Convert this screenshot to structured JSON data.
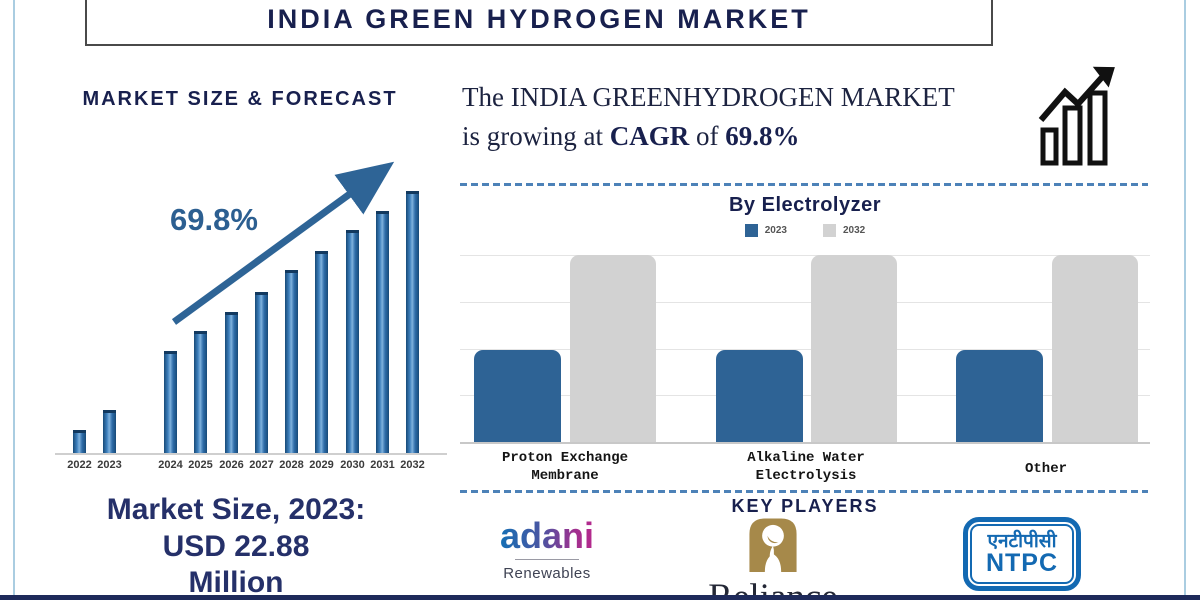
{
  "header": {
    "title": "INDIA GREEN HYDROGEN MARKET"
  },
  "forecast": {
    "heading": "MARKET SIZE & FORECAST",
    "cagr_label": "69.8%"
  },
  "market_size": {
    "line1": "Market Size, 2023:",
    "line2": "USD 22.88",
    "line3": "Million"
  },
  "headline": {
    "part1": "The INDIA GREENHYDROGEN MARKET",
    "part2": "is growing at ",
    "bold1": "CAGR",
    "part3": " of ",
    "bold2": "69.8%"
  },
  "electrolyzer": {
    "title": "By Electrolyzer",
    "legend": [
      {
        "label": "2023",
        "color": "#2e6395"
      },
      {
        "label": "2032",
        "color": "#d2d2d2"
      }
    ]
  },
  "key_players": {
    "title": "KEY PLAYERS",
    "players": [
      {
        "name": "adani",
        "subtitle": "Renewables"
      },
      {
        "name": "Reliance"
      },
      {
        "name_devanagari": "एनटीपीसी",
        "name": "NTPC"
      }
    ]
  },
  "icons": {
    "growth_chart_icon": "bar-chart-with-rising-arrow",
    "trend_arrow_icon": "diagonal-up-arrow"
  },
  "colors": {
    "navy_text": "#18204e",
    "steel_blue": "#2e6395",
    "forecast_bar_blue": "#2f6da9",
    "gray_bar": "#d2d2d2",
    "dashed_line_blue": "#4d82b8",
    "edge_line_blue": "#aacde1",
    "reliance_gold": "#a6894a",
    "ntpc_blue": "#1369b2",
    "bottom_strip_navy": "#1e2a5a"
  },
  "chart_data": [
    {
      "type": "bar",
      "title": "MARKET SIZE & FORECAST",
      "categories": [
        "2022",
        "2023",
        "2024",
        "2025",
        "2026",
        "2027",
        "2028",
        "2029",
        "2030",
        "2031",
        "2032"
      ],
      "values_pct_of_max": [
        8.8,
        16.4,
        38.9,
        46.6,
        53.8,
        61.5,
        69.8,
        77.1,
        85.1,
        92.4,
        100
      ],
      "known_value": {
        "year": "2023",
        "value": 22.88,
        "unit": "USD Million"
      },
      "cagr_pct": 69.8,
      "xlabel": "",
      "ylabel": "",
      "axis_value_labels_visible": false,
      "annotation": "69.8% with rising trend arrow"
    },
    {
      "type": "bar",
      "title": "By Electrolyzer",
      "categories": [
        "Proton Exchange Membrane",
        "Alkaline Water Electrolysis",
        "Other"
      ],
      "series": [
        {
          "name": "2023",
          "color": "#2e6395",
          "values_pct_of_max": [
            49,
            49,
            49
          ]
        },
        {
          "name": "2032",
          "color": "#d2d2d2",
          "values_pct_of_max": [
            100,
            100,
            100
          ]
        }
      ],
      "grid": true,
      "legend_position": "top",
      "axis_value_labels_visible": false
    }
  ]
}
